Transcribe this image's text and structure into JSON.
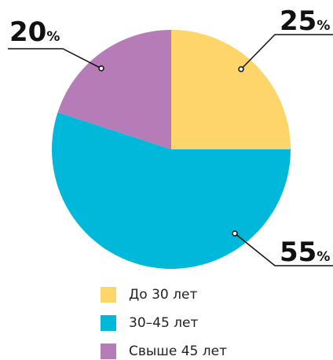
{
  "chart_data": {
    "type": "pie",
    "categories": [
      "До 30 лет",
      "30–45 лет",
      "Свыше 45 лет"
    ],
    "values": [
      25,
      55,
      20
    ],
    "value_labels": [
      "25%",
      "55%",
      "20%"
    ],
    "colors": [
      "#fdd56b",
      "#00b8d9",
      "#b57cb7"
    ],
    "legend": "bottom"
  }
}
